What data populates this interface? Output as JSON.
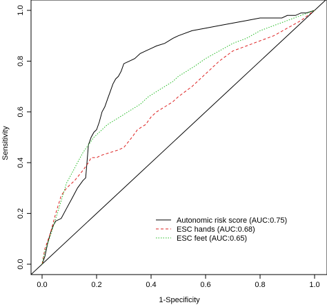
{
  "chart_data": {
    "type": "line",
    "title": "",
    "xlabel": "1-Specificity",
    "ylabel": "Sensitivity",
    "xlim": [
      0,
      1
    ],
    "ylim": [
      0,
      1
    ],
    "x_ticks": [
      0.0,
      0.2,
      0.4,
      0.6,
      0.8,
      1.0
    ],
    "x_tick_labels": [
      "0.0",
      "0.2",
      "0.4",
      "0.6",
      "0.8",
      "1.0"
    ],
    "y_ticks": [
      0.0,
      0.2,
      0.4,
      0.6,
      0.8,
      1.0
    ],
    "y_tick_labels": [
      "0.0",
      "0.2",
      "0.4",
      "0.6",
      "0.8",
      "1.0"
    ],
    "grid": false,
    "legend_position": "bottom-right",
    "series": [
      {
        "name": "Autonomic risk score (AUC:0.75)",
        "color": "#000000",
        "style": "solid",
        "x": [
          0,
          0.01,
          0.02,
          0.03,
          0.04,
          0.05,
          0.07,
          0.09,
          0.11,
          0.13,
          0.15,
          0.16,
          0.17,
          0.18,
          0.19,
          0.2,
          0.21,
          0.22,
          0.23,
          0.24,
          0.25,
          0.26,
          0.27,
          0.28,
          0.29,
          0.3,
          0.32,
          0.34,
          0.36,
          0.38,
          0.4,
          0.42,
          0.45,
          0.48,
          0.5,
          0.55,
          0.6,
          0.65,
          0.7,
          0.75,
          0.8,
          0.85,
          0.88,
          0.9,
          0.93,
          0.95,
          0.97,
          1.0
        ],
        "y": [
          0,
          0.03,
          0.08,
          0.12,
          0.15,
          0.17,
          0.18,
          0.22,
          0.26,
          0.3,
          0.33,
          0.34,
          0.47,
          0.5,
          0.52,
          0.53,
          0.56,
          0.6,
          0.62,
          0.65,
          0.68,
          0.71,
          0.73,
          0.74,
          0.76,
          0.79,
          0.8,
          0.81,
          0.83,
          0.84,
          0.85,
          0.86,
          0.87,
          0.89,
          0.9,
          0.92,
          0.93,
          0.94,
          0.95,
          0.96,
          0.97,
          0.97,
          0.97,
          0.98,
          0.98,
          0.99,
          0.99,
          1.0
        ]
      },
      {
        "name": "ESC hands (AUC:0.68)",
        "color": "#dd2020",
        "style": "dashed",
        "x": [
          0,
          0.01,
          0.03,
          0.05,
          0.07,
          0.09,
          0.12,
          0.15,
          0.17,
          0.18,
          0.2,
          0.22,
          0.25,
          0.28,
          0.3,
          0.33,
          0.35,
          0.38,
          0.4,
          0.42,
          0.45,
          0.48,
          0.5,
          0.55,
          0.6,
          0.65,
          0.7,
          0.75,
          0.8,
          0.85,
          0.9,
          0.95,
          1.0
        ],
        "y": [
          0,
          0.06,
          0.12,
          0.2,
          0.27,
          0.3,
          0.33,
          0.37,
          0.4,
          0.42,
          0.42,
          0.43,
          0.44,
          0.45,
          0.46,
          0.5,
          0.53,
          0.55,
          0.58,
          0.6,
          0.62,
          0.64,
          0.66,
          0.7,
          0.75,
          0.8,
          0.84,
          0.86,
          0.88,
          0.9,
          0.93,
          0.96,
          1.0
        ]
      },
      {
        "name": "ESC feet (AUC:0.65)",
        "color": "#22bb22",
        "style": "dotted",
        "x": [
          0,
          0.01,
          0.03,
          0.05,
          0.07,
          0.09,
          0.11,
          0.13,
          0.15,
          0.17,
          0.19,
          0.21,
          0.24,
          0.27,
          0.3,
          0.33,
          0.36,
          0.39,
          0.42,
          0.45,
          0.48,
          0.5,
          0.53,
          0.56,
          0.6,
          0.65,
          0.7,
          0.75,
          0.8,
          0.85,
          0.9,
          0.95,
          1.0
        ],
        "y": [
          0,
          0.05,
          0.11,
          0.18,
          0.25,
          0.32,
          0.36,
          0.4,
          0.44,
          0.47,
          0.5,
          0.52,
          0.55,
          0.57,
          0.59,
          0.61,
          0.63,
          0.66,
          0.68,
          0.7,
          0.72,
          0.74,
          0.76,
          0.78,
          0.81,
          0.84,
          0.87,
          0.89,
          0.92,
          0.94,
          0.96,
          0.98,
          1.0
        ]
      }
    ],
    "reference_line": {
      "x": [
        0,
        1
      ],
      "y": [
        0,
        1
      ],
      "color": "#000000"
    }
  }
}
